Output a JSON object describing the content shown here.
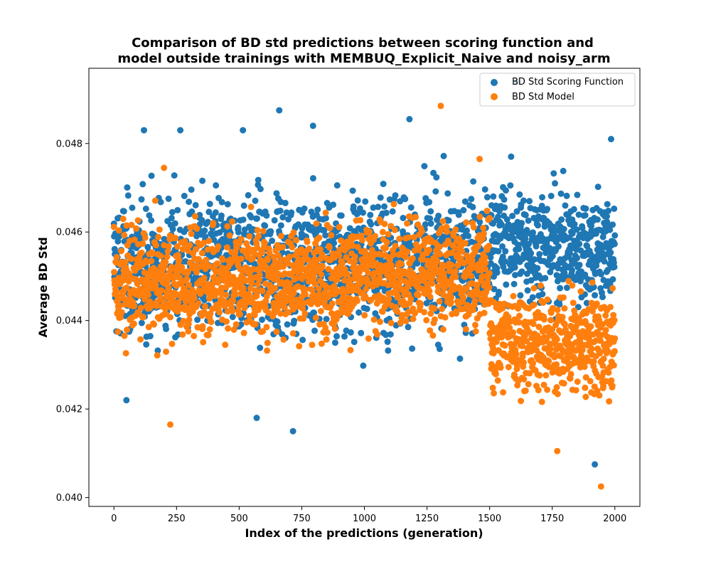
{
  "colors": {
    "series1": "#1f77b4",
    "series2": "#ff7f0e",
    "background": "#ffffff",
    "axes": "#000000"
  },
  "chart_data": {
    "type": "scatter",
    "title": [
      "Comparison of BD std predictions between scoring function and",
      "model outside trainings with MEMBUQ_Explicit_Naive and noisy_arm"
    ],
    "xlabel": "Index of the predictions (generation)",
    "ylabel": "Average BD Std",
    "xlim": [
      -100,
      2100
    ],
    "ylim": [
      0.0398,
      0.0497
    ],
    "xticks": [
      0,
      250,
      500,
      750,
      1000,
      1250,
      1500,
      1750,
      2000
    ],
    "xtick_labels": [
      "0",
      "250",
      "500",
      "750",
      "1000",
      "1250",
      "1500",
      "1750",
      "2000"
    ],
    "yticks": [
      0.04,
      0.042,
      0.044,
      0.046,
      0.048
    ],
    "ytick_labels": [
      "0.040",
      "0.042",
      "0.044",
      "0.046",
      "0.048"
    ],
    "grid": false,
    "legend": {
      "position": "upper right",
      "entries": [
        "BD Std Scoring Function",
        "BD Std Model"
      ]
    },
    "series": [
      {
        "name": "BD Std Scoring Function",
        "color": "#1f77b4",
        "n_points": 2000,
        "x_range": [
          0,
          2000
        ],
        "segments": [
          {
            "x_start": 0,
            "x_end": 1500,
            "mean_start": 0.0452,
            "mean_end": 0.0454,
            "spread": 0.0014
          },
          {
            "x_start": 1500,
            "x_end": 2000,
            "mean_start": 0.0458,
            "mean_end": 0.0456,
            "spread": 0.0012
          }
        ],
        "notable_points": [
          {
            "x": 120,
            "y": 0.0483
          },
          {
            "x": 265,
            "y": 0.0483
          },
          {
            "x": 515,
            "y": 0.0483
          },
          {
            "x": 660,
            "y": 0.04875
          },
          {
            "x": 795,
            "y": 0.0484
          },
          {
            "x": 1180,
            "y": 0.04855
          },
          {
            "x": 1610,
            "y": 0.0494
          },
          {
            "x": 1920,
            "y": 0.04075
          },
          {
            "x": 715,
            "y": 0.0415
          },
          {
            "x": 50,
            "y": 0.0422
          },
          {
            "x": 570,
            "y": 0.0418
          },
          {
            "x": 1985,
            "y": 0.0481
          }
        ]
      },
      {
        "name": "BD Std Model",
        "color": "#ff7f0e",
        "n_points": 2000,
        "x_range": [
          0,
          2000
        ],
        "segments": [
          {
            "x_start": 0,
            "x_end": 1500,
            "mean_start": 0.0448,
            "mean_end": 0.0451,
            "spread": 0.0011
          },
          {
            "x_start": 1500,
            "x_end": 2000,
            "mean_start": 0.0436,
            "mean_end": 0.0434,
            "spread": 0.001
          }
        ],
        "notable_points": [
          {
            "x": 1305,
            "y": 0.04885
          },
          {
            "x": 225,
            "y": 0.04165
          },
          {
            "x": 1770,
            "y": 0.04105
          },
          {
            "x": 1945,
            "y": 0.04025
          },
          {
            "x": 200,
            "y": 0.04745
          },
          {
            "x": 1460,
            "y": 0.04765
          }
        ]
      }
    ]
  }
}
